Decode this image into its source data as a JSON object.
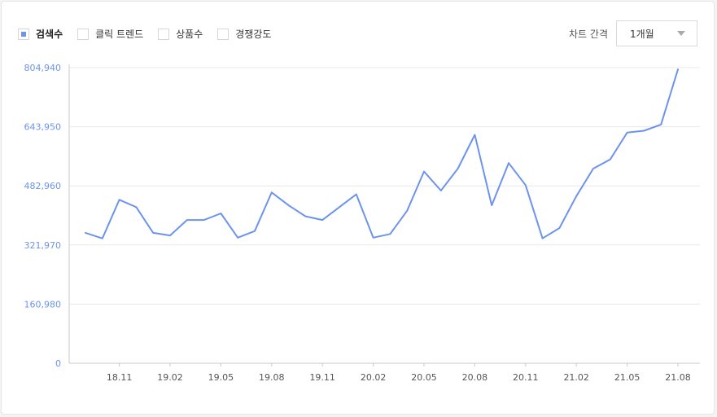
{
  "legend": {
    "items": [
      {
        "label": "검색수",
        "checked": true
      },
      {
        "label": "클릭 트렌드",
        "checked": false
      },
      {
        "label": "상품수",
        "checked": false
      },
      {
        "label": "경쟁강도",
        "checked": false
      }
    ]
  },
  "interval": {
    "label": "차트 간격",
    "selected": "1개월"
  },
  "colors": {
    "series": "#6c94ec",
    "grid": "#e8e8e8",
    "axis": "#c9c9c9"
  },
  "chart_data": {
    "type": "line",
    "series": [
      {
        "name": "검색수",
        "x": [
          "18.09",
          "18.10",
          "18.11",
          "18.12",
          "19.01",
          "19.02",
          "19.03",
          "19.04",
          "19.05",
          "19.06",
          "19.07",
          "19.08",
          "19.09",
          "19.10",
          "19.11",
          "19.12",
          "20.01",
          "20.02",
          "20.03",
          "20.04",
          "20.05",
          "20.06",
          "20.07",
          "20.08",
          "20.09",
          "20.10",
          "20.11",
          "20.12",
          "21.01",
          "21.02",
          "21.03",
          "21.04",
          "21.05",
          "21.06",
          "21.07",
          "21.08"
        ],
        "values": [
          355000,
          340000,
          445000,
          425000,
          355000,
          348000,
          390000,
          390000,
          408000,
          342000,
          360000,
          465000,
          430000,
          400000,
          390000,
          425000,
          460000,
          342000,
          352000,
          415000,
          522000,
          470000,
          530000,
          622000,
          430000,
          545000,
          485000,
          340000,
          368000,
          455000,
          530000,
          555000,
          628000,
          633000,
          650000,
          800000
        ]
      }
    ],
    "yticks": [
      "0",
      "160,980",
      "321,970",
      "482,960",
      "643,950",
      "804,940"
    ],
    "ytick_values": [
      0,
      160980,
      321970,
      482960,
      643950,
      804940
    ],
    "xticks": [
      "18.11",
      "19.02",
      "19.05",
      "19.08",
      "19.11",
      "20.02",
      "20.05",
      "20.08",
      "20.11",
      "21.02",
      "21.05",
      "21.08"
    ],
    "ylim": [
      0,
      804940
    ],
    "grid": true
  }
}
